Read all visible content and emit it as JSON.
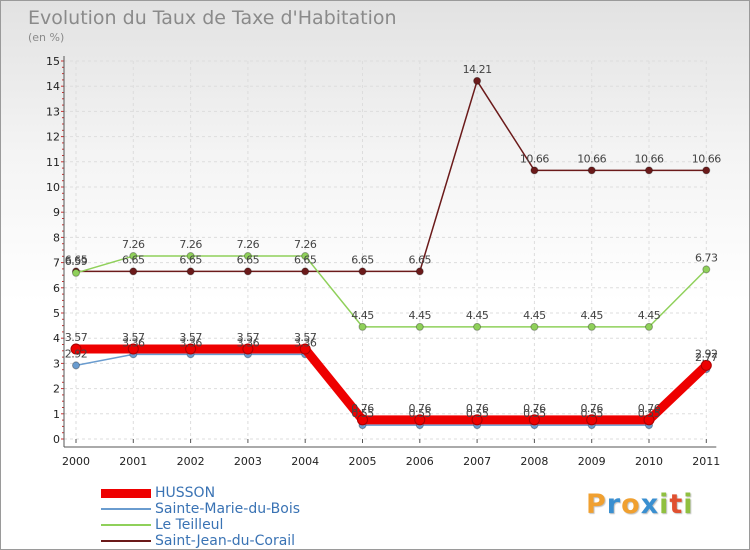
{
  "title": "Evolution du Taux de Taxe d'Habitation",
  "unit": "(en %)",
  "logo": {
    "letters": [
      "P",
      "r",
      "o",
      "x",
      "i",
      "t",
      "i"
    ],
    "colors": [
      "#f0a030",
      "#3a8fd0",
      "#f0a030",
      "#3a8fd0",
      "#90c040",
      "#e05030",
      "#90c040"
    ]
  },
  "legend": [
    {
      "label": "HUSSON",
      "color": "#ee0000"
    },
    {
      "label": "Sainte-Marie-du-Bois",
      "color": "#6a9ccf"
    },
    {
      "label": "Le Teilleul",
      "color": "#8fd05a"
    },
    {
      "label": "Saint-Jean-du-Corail",
      "color": "#6b1a1a"
    }
  ],
  "chart_data": {
    "type": "line",
    "x": [
      "2000",
      "2001",
      "2002",
      "2003",
      "2004",
      "2005",
      "2006",
      "2007",
      "2008",
      "2009",
      "2010",
      "2011"
    ],
    "ylim": [
      0,
      15
    ],
    "yticks": [
      0,
      1,
      2,
      3,
      4,
      5,
      6,
      7,
      8,
      9,
      10,
      11,
      12,
      13,
      14,
      15
    ],
    "grid": true,
    "series": [
      {
        "name": "Saint-Jean-du-Corail",
        "color": "#6b1a1a",
        "values": [
          6.65,
          6.65,
          6.65,
          6.65,
          6.65,
          6.65,
          6.65,
          14.21,
          10.66,
          10.66,
          10.66,
          10.66
        ],
        "labels": [
          "6.65",
          "6.65",
          "6.65",
          "6.65",
          "6.65",
          "6.65",
          "6.65",
          "14.21",
          "10.66",
          "10.66",
          "10.66",
          "10.66"
        ]
      },
      {
        "name": "Le Teilleul",
        "color": "#8fd05a",
        "values": [
          6.59,
          7.26,
          7.26,
          7.26,
          7.26,
          4.45,
          4.45,
          4.45,
          4.45,
          4.45,
          4.45,
          6.73
        ],
        "labels": [
          "6.59",
          "7.26",
          "7.26",
          "7.26",
          "7.26",
          "4.45",
          "4.45",
          "4.45",
          "4.45",
          "4.45",
          "4.45",
          "6.73"
        ]
      },
      {
        "name": "Sainte-Marie-du-Bois",
        "color": "#6a9ccf",
        "values": [
          2.92,
          3.36,
          3.36,
          3.36,
          3.36,
          0.55,
          0.55,
          0.55,
          0.55,
          0.55,
          0.55,
          2.77
        ],
        "labels": [
          "2.92",
          "3.36",
          "3.36",
          "3.36",
          "3.36",
          "0.55",
          "0.55",
          "0.55",
          "0.55",
          "0.55",
          "0.55",
          "2.77"
        ]
      },
      {
        "name": "HUSSON",
        "color": "#ee0000",
        "values": [
          3.57,
          3.57,
          3.57,
          3.57,
          3.57,
          0.76,
          0.76,
          0.76,
          0.76,
          0.76,
          0.76,
          2.92
        ],
        "labels": [
          "3.57",
          "3.57",
          "3.57",
          "3.57",
          "3.57",
          "0.76",
          "0.76",
          "0.76",
          "0.76",
          "0.76",
          "0.76",
          "2.92"
        ]
      }
    ]
  }
}
